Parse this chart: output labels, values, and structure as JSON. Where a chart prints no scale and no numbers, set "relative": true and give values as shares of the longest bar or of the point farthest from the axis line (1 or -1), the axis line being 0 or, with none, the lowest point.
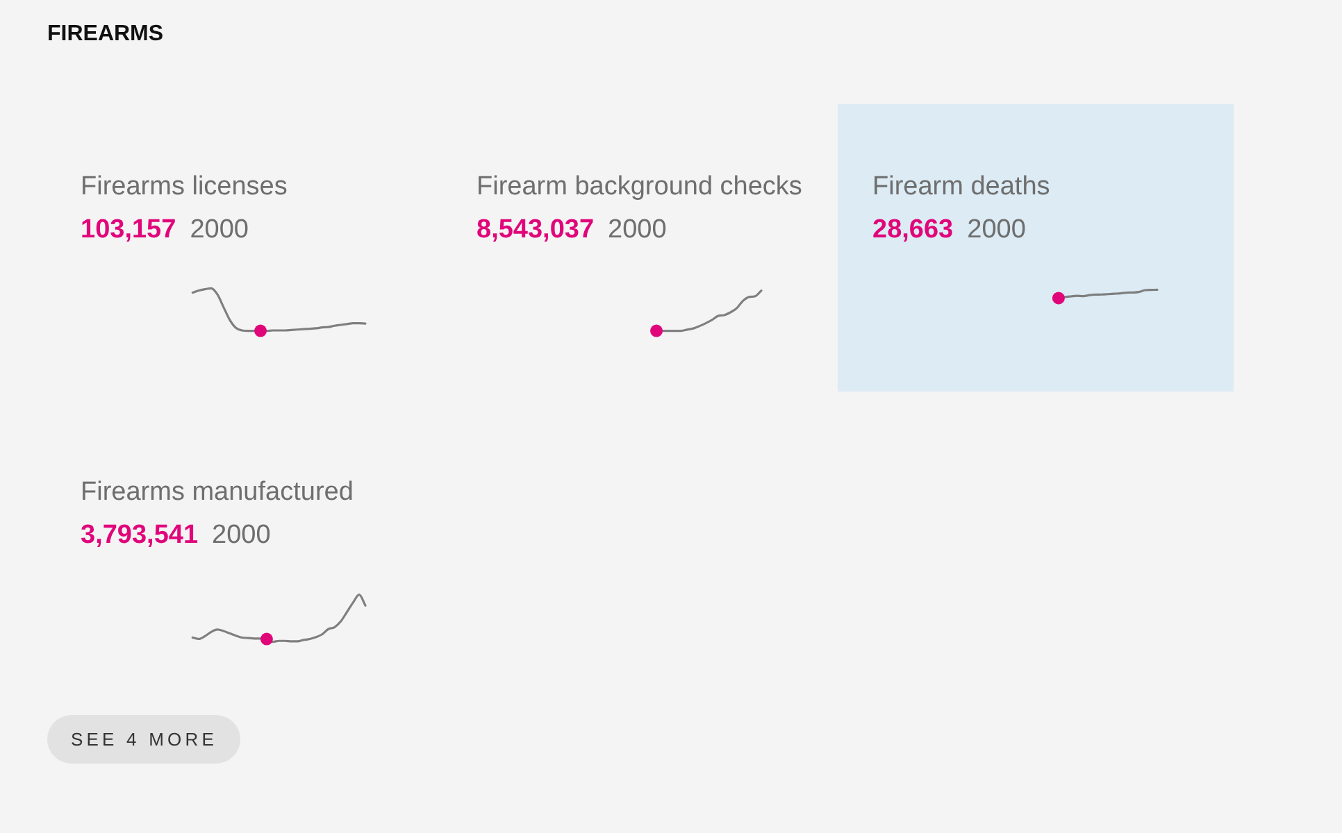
{
  "chart_data": [
    {
      "type": "other",
      "title": "FIREARMS"
    },
    {
      "type": "line",
      "title": "Firearms licenses",
      "relative": true,
      "categories": [
        null,
        null,
        null,
        null,
        null,
        null,
        null,
        null,
        null,
        null,
        null,
        null,
        null,
        null,
        null,
        null,
        null,
        null,
        null,
        null,
        null,
        null,
        null,
        null,
        null,
        null,
        null,
        null,
        null
      ],
      "series": [
        {
          "color": "#7f7f7f",
          "values": [
            0.9,
            0.95,
            0.98,
            1,
            0.86,
            0.56,
            0.26,
            0.07,
            0.01,
            0,
            0,
            0,
            0,
            0.01,
            0.01,
            0.01,
            0.02,
            0.03,
            0.04,
            0.05,
            0.06,
            0.08,
            0.09,
            0.12,
            0.14,
            0.16,
            0.18,
            0.18,
            0.17
          ]
        },
        {
          "color": "#e0067a",
          "marker": "circle",
          "values": [
            null,
            null,
            null,
            null,
            null,
            null,
            null,
            null,
            null,
            null,
            null,
            0,
            null,
            null,
            null,
            null,
            null,
            null,
            null,
            null,
            null,
            null,
            null,
            null,
            null,
            null,
            null,
            null,
            null
          ]
        }
      ],
      "annotations": [
        "103,157",
        "2000"
      ]
    },
    {
      "type": "line",
      "title": "Firearm background checks",
      "relative": true,
      "categories": [
        null,
        null,
        null,
        null,
        null,
        null,
        null,
        null,
        null,
        null,
        null,
        null,
        null,
        null,
        null,
        null,
        null,
        null
      ],
      "series": [
        {
          "color": "#7f7f7f",
          "values": [
            0,
            0,
            0,
            0,
            0,
            0.03,
            0.06,
            0.12,
            0.19,
            0.27,
            0.37,
            0.39,
            0.46,
            0.56,
            0.74,
            0.84,
            0.86,
            1
          ]
        },
        {
          "color": "#e0067a",
          "marker": "circle",
          "values": [
            0,
            null,
            null,
            null,
            null,
            null,
            null,
            null,
            null,
            null,
            null,
            null,
            null,
            null,
            null,
            null,
            null,
            null
          ]
        }
      ],
      "annotations": [
        "8,543,037",
        "2000"
      ]
    },
    {
      "type": "line",
      "title": "Firearm deaths",
      "relative": true,
      "categories": [
        null,
        null,
        null,
        null,
        null,
        null,
        null,
        null,
        null,
        null,
        null,
        null,
        null,
        null,
        null,
        null,
        null
      ],
      "series": [
        {
          "color": "#7f7f7f",
          "values": [
            0,
            0.12,
            0.2,
            0.27,
            0.23,
            0.35,
            0.42,
            0.43,
            0.47,
            0.52,
            0.57,
            0.65,
            0.67,
            0.73,
            0.95,
            0.98,
            1
          ]
        },
        {
          "color": "#e0067a",
          "marker": "circle",
          "values": [
            0,
            null,
            null,
            null,
            null,
            null,
            null,
            null,
            null,
            null,
            null,
            null,
            null,
            null,
            null,
            null,
            null
          ]
        }
      ],
      "annotations": [
        "28,663",
        "2000"
      ]
    },
    {
      "type": "line",
      "title": "Firearms manufactured",
      "relative": true,
      "categories": [
        null,
        null,
        null,
        null,
        null,
        null,
        null,
        null,
        null,
        null,
        null,
        null,
        null,
        null,
        null,
        null,
        null,
        null,
        null,
        null,
        null,
        null,
        null,
        null,
        null,
        null,
        null,
        null,
        null
      ],
      "series": [
        {
          "color": "#7f7f7f",
          "values": [
            0.09,
            0.06,
            0.12,
            0.21,
            0.26,
            0.23,
            0.18,
            0.13,
            0.09,
            0.08,
            0.07,
            0.07,
            0.06,
            0,
            0.02,
            0.02,
            0.01,
            0.01,
            0.04,
            0.06,
            0.1,
            0.16,
            0.27,
            0.31,
            0.43,
            0.63,
            0.83,
            1,
            0.77
          ]
        },
        {
          "color": "#e0067a",
          "marker": "circle",
          "values": [
            null,
            null,
            null,
            null,
            null,
            null,
            null,
            null,
            null,
            null,
            null,
            null,
            0.06,
            null,
            null,
            null,
            null,
            null,
            null,
            null,
            null,
            null,
            null,
            null,
            null,
            null,
            null,
            null,
            null
          ]
        }
      ],
      "annotations": [
        "3,793,541",
        "2000"
      ]
    },
    {
      "type": "other",
      "annotations": [
        "SEE 4 MORE"
      ]
    }
  ]
}
